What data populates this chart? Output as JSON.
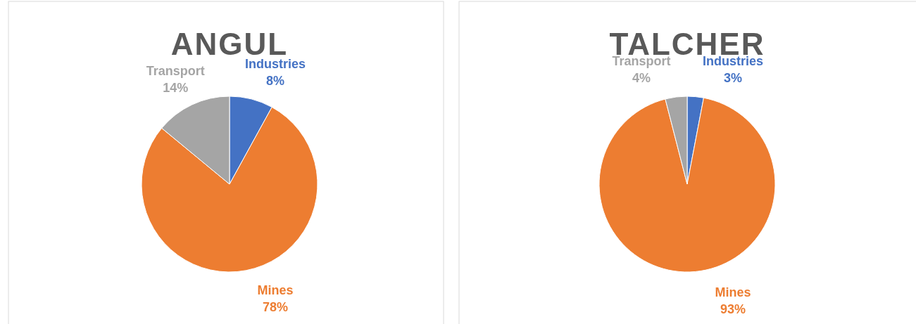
{
  "chart_data": [
    {
      "type": "pie",
      "title": "ANGUL",
      "categories": [
        "Industries",
        "Mines",
        "Transport"
      ],
      "values": [
        8,
        78,
        14
      ],
      "colors": [
        "#4472c4",
        "#ed7d31",
        "#a5a5a5"
      ],
      "value_labels": [
        "8%",
        "78%",
        "14%"
      ]
    },
    {
      "type": "pie",
      "title": "TALCHER",
      "categories": [
        "Industries",
        "Mines",
        "Transport"
      ],
      "values": [
        3,
        93,
        4
      ],
      "colors": [
        "#4472c4",
        "#ed7d31",
        "#a5a5a5"
      ],
      "value_labels": [
        "3%",
        "93%",
        "4%"
      ]
    }
  ]
}
